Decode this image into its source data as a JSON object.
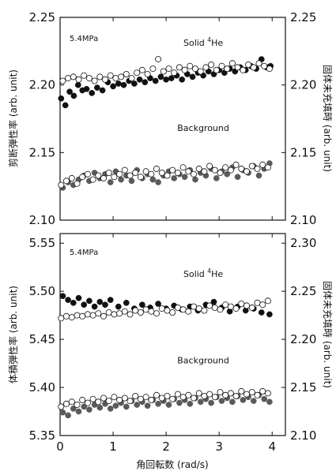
{
  "chart_data": [
    {
      "type": "scatter",
      "panel": "top",
      "pressure_label": "5.4MPa",
      "ylabel_left": "剪断弾性率 (arb. unit)",
      "ylabel_right": "固体未充填時 (arb. unit)",
      "xlim": [
        0,
        4.25
      ],
      "ylim_left": [
        2.1,
        2.25
      ],
      "ylim_right": [
        2.1,
        2.25
      ],
      "yticks_left": [
        "2.10",
        "2.15",
        "2.20",
        "2.25"
      ],
      "yticks_right": [
        "2.10",
        "2.15",
        "2.20",
        "2.25"
      ],
      "annotations": [
        {
          "id": "solid",
          "text": "Solid ",
          "sup": "4",
          "tail": "He",
          "x": 2.7,
          "y": 2.229
        },
        {
          "id": "background",
          "text": "Background",
          "x": 2.7,
          "y": 2.166
        }
      ],
      "series": [
        {
          "id": "solid-filled",
          "marker": "filled-dark",
          "color": "#111111",
          "x": [
            0.02,
            0.1,
            0.18,
            0.26,
            0.34,
            0.42,
            0.5,
            0.6,
            0.7,
            0.8,
            0.9,
            1.0,
            1.1,
            1.2,
            1.3,
            1.4,
            1.5,
            1.6,
            1.7,
            1.8,
            1.9,
            2.0,
            2.1,
            2.2,
            2.3,
            2.4,
            2.5,
            2.6,
            2.7,
            2.8,
            2.9,
            3.0,
            3.1,
            3.2,
            3.3,
            3.4,
            3.5,
            3.6,
            3.7,
            3.8,
            3.9,
            3.97
          ],
          "y": [
            2.19,
            2.185,
            2.195,
            2.192,
            2.2,
            2.196,
            2.197,
            2.194,
            2.198,
            2.196,
            2.202,
            2.199,
            2.201,
            2.2,
            2.203,
            2.201,
            2.204,
            2.202,
            2.205,
            2.203,
            2.206,
            2.204,
            2.205,
            2.207,
            2.204,
            2.208,
            2.206,
            2.209,
            2.207,
            2.21,
            2.208,
            2.211,
            2.209,
            2.212,
            2.21,
            2.213,
            2.211,
            2.214,
            2.212,
            2.219,
            2.213,
            2.214
          ]
        },
        {
          "id": "solid-open",
          "marker": "open",
          "color": "#111111",
          "x": [
            0.05,
            0.15,
            0.25,
            0.35,
            0.45,
            0.55,
            0.65,
            0.75,
            0.85,
            0.95,
            1.05,
            1.15,
            1.25,
            1.35,
            1.45,
            1.55,
            1.65,
            1.75,
            1.85,
            1.95,
            2.05,
            2.15,
            2.25,
            2.35,
            2.45,
            2.55,
            2.65,
            2.75,
            2.85,
            2.95,
            3.05,
            3.15,
            3.25,
            3.35,
            3.45,
            3.55,
            3.65,
            3.75,
            3.85,
            3.95
          ],
          "y": [
            2.203,
            2.205,
            2.206,
            2.204,
            2.207,
            2.205,
            2.203,
            2.206,
            2.204,
            2.207,
            2.205,
            2.206,
            2.208,
            2.205,
            2.209,
            2.211,
            2.208,
            2.212,
            2.219,
            2.21,
            2.212,
            2.209,
            2.213,
            2.211,
            2.214,
            2.212,
            2.21,
            2.213,
            2.215,
            2.211,
            2.214,
            2.212,
            2.216,
            2.213,
            2.211,
            2.215,
            2.213,
            2.216,
            2.214,
            2.212
          ]
        },
        {
          "id": "background-filled",
          "marker": "filled-gray",
          "color": "#5a5a5a",
          "x": [
            0.05,
            0.15,
            0.25,
            0.35,
            0.45,
            0.55,
            0.65,
            0.75,
            0.85,
            0.95,
            1.05,
            1.15,
            1.25,
            1.35,
            1.45,
            1.55,
            1.65,
            1.75,
            1.85,
            1.95,
            2.05,
            2.15,
            2.25,
            2.35,
            2.45,
            2.55,
            2.65,
            2.75,
            2.85,
            2.95,
            3.05,
            3.15,
            3.25,
            3.35,
            3.45,
            3.55,
            3.65,
            3.75,
            3.85,
            3.95
          ],
          "y": [
            2.124,
            2.128,
            2.126,
            2.13,
            2.133,
            2.129,
            2.135,
            2.131,
            2.134,
            2.128,
            2.136,
            2.13,
            2.133,
            2.129,
            2.137,
            2.131,
            2.134,
            2.13,
            2.128,
            2.133,
            2.136,
            2.131,
            2.134,
            2.132,
            2.137,
            2.13,
            2.135,
            2.133,
            2.138,
            2.131,
            2.136,
            2.134,
            2.139,
            2.132,
            2.137,
            2.135,
            2.14,
            2.133,
            2.138,
            2.142
          ]
        },
        {
          "id": "background-open",
          "marker": "open",
          "color": "#111111",
          "x": [
            0.02,
            0.12,
            0.22,
            0.32,
            0.42,
            0.52,
            0.62,
            0.72,
            0.82,
            0.92,
            1.02,
            1.12,
            1.22,
            1.32,
            1.42,
            1.52,
            1.62,
            1.72,
            1.82,
            1.92,
            2.02,
            2.12,
            2.22,
            2.32,
            2.42,
            2.52,
            2.62,
            2.72,
            2.82,
            2.92,
            3.02,
            3.12,
            3.22,
            3.32,
            3.42,
            3.52,
            3.62,
            3.72,
            3.82,
            3.92
          ],
          "y": [
            2.126,
            2.129,
            2.131,
            2.127,
            2.132,
            2.134,
            2.13,
            2.133,
            2.131,
            2.135,
            2.132,
            2.134,
            2.137,
            2.133,
            2.135,
            2.132,
            2.136,
            2.134,
            2.138,
            2.135,
            2.133,
            2.137,
            2.135,
            2.139,
            2.136,
            2.134,
            2.138,
            2.136,
            2.14,
            2.137,
            2.135,
            2.139,
            2.137,
            2.141,
            2.138,
            2.136,
            2.14,
            2.138,
            2.141,
            2.139
          ]
        }
      ]
    },
    {
      "type": "scatter",
      "panel": "bottom",
      "pressure_label": "5.4MPa",
      "xlabel": "角回転数 (rad/s)",
      "ylabel_left": "体積弾性率 (arb. unit)",
      "ylabel_right": "固体未充填時 (arb. unit)",
      "xlim": [
        0,
        4.25
      ],
      "xticks": [
        "0",
        "1",
        "2",
        "3",
        "4"
      ],
      "ylim_left": [
        5.35,
        5.56
      ],
      "ylim_right": [
        2.1,
        2.31
      ],
      "yticks_left": [
        "5.35",
        "5.40",
        "5.45",
        "5.50",
        "5.55"
      ],
      "yticks_right": [
        "2.10",
        "2.15",
        "2.20",
        "2.25",
        "2.30"
      ],
      "annotations": [
        {
          "id": "solid",
          "text": "Solid ",
          "sup": "4",
          "tail": "He",
          "x": 2.7,
          "y": 5.515
        },
        {
          "id": "background",
          "text": "Background",
          "x": 2.7,
          "y": 5.425
        }
      ],
      "series": [
        {
          "id": "solid-filled",
          "marker": "filled-dark",
          "color": "#111111",
          "x": [
            0.05,
            0.15,
            0.25,
            0.35,
            0.45,
            0.55,
            0.65,
            0.75,
            0.85,
            0.95,
            1.1,
            1.25,
            1.4,
            1.55,
            1.7,
            1.85,
            2.0,
            2.15,
            2.3,
            2.45,
            2.6,
            2.75,
            2.9,
            3.05,
            3.2,
            3.35,
            3.5,
            3.65,
            3.8,
            3.95
          ],
          "y": [
            5.495,
            5.491,
            5.488,
            5.493,
            5.486,
            5.49,
            5.484,
            5.489,
            5.486,
            5.491,
            5.484,
            5.488,
            5.482,
            5.486,
            5.483,
            5.487,
            5.482,
            5.485,
            5.481,
            5.484,
            5.48,
            5.486,
            5.489,
            5.483,
            5.479,
            5.484,
            5.48,
            5.482,
            5.478,
            5.476
          ]
        },
        {
          "id": "solid-open",
          "marker": "open",
          "color": "#111111",
          "x": [
            0.02,
            0.12,
            0.22,
            0.32,
            0.42,
            0.52,
            0.62,
            0.72,
            0.82,
            0.92,
            1.02,
            1.12,
            1.22,
            1.32,
            1.42,
            1.52,
            1.62,
            1.72,
            1.82,
            1.92,
            2.02,
            2.12,
            2.22,
            2.32,
            2.42,
            2.52,
            2.62,
            2.72,
            2.82,
            2.92,
            3.02,
            3.12,
            3.22,
            3.32,
            3.42,
            3.52,
            3.62,
            3.72,
            3.82,
            3.92
          ],
          "y": [
            5.472,
            5.474,
            5.473,
            5.475,
            5.474,
            5.476,
            5.475,
            5.477,
            5.474,
            5.478,
            5.476,
            5.477,
            5.479,
            5.476,
            5.48,
            5.478,
            5.481,
            5.479,
            5.477,
            5.482,
            5.48,
            5.478,
            5.483,
            5.481,
            5.479,
            5.484,
            5.482,
            5.48,
            5.485,
            5.483,
            5.481,
            5.486,
            5.484,
            5.482,
            5.487,
            5.485,
            5.483,
            5.488,
            5.486,
            5.49
          ]
        },
        {
          "id": "background-filled",
          "marker": "filled-gray",
          "color": "#5a5a5a",
          "x": [
            0.05,
            0.15,
            0.25,
            0.35,
            0.45,
            0.55,
            0.65,
            0.75,
            0.85,
            0.95,
            1.05,
            1.15,
            1.25,
            1.35,
            1.45,
            1.55,
            1.65,
            1.75,
            1.85,
            1.95,
            2.05,
            2.15,
            2.25,
            2.35,
            2.45,
            2.55,
            2.65,
            2.75,
            2.85,
            2.95,
            3.05,
            3.15,
            3.25,
            3.35,
            3.45,
            3.55,
            3.65,
            3.75,
            3.85,
            3.95
          ],
          "y": [
            5.374,
            5.371,
            5.378,
            5.375,
            5.38,
            5.377,
            5.382,
            5.379,
            5.383,
            5.378,
            5.381,
            5.384,
            5.38,
            5.386,
            5.382,
            5.385,
            5.381,
            5.387,
            5.383,
            5.386,
            5.382,
            5.388,
            5.384,
            5.387,
            5.383,
            5.389,
            5.385,
            5.388,
            5.384,
            5.39,
            5.386,
            5.389,
            5.385,
            5.391,
            5.387,
            5.39,
            5.386,
            5.392,
            5.388,
            5.385
          ]
        },
        {
          "id": "background-open",
          "marker": "open",
          "color": "#111111",
          "x": [
            0.02,
            0.12,
            0.22,
            0.32,
            0.42,
            0.52,
            0.62,
            0.72,
            0.82,
            0.92,
            1.02,
            1.12,
            1.22,
            1.32,
            1.42,
            1.52,
            1.62,
            1.72,
            1.82,
            1.92,
            2.02,
            2.12,
            2.22,
            2.32,
            2.42,
            2.52,
            2.62,
            2.72,
            2.82,
            2.92,
            3.02,
            3.12,
            3.22,
            3.32,
            3.42,
            3.52,
            3.62,
            3.72,
            3.82,
            3.92
          ],
          "y": [
            5.38,
            5.383,
            5.385,
            5.382,
            5.387,
            5.384,
            5.388,
            5.385,
            5.389,
            5.386,
            5.39,
            5.387,
            5.389,
            5.386,
            5.391,
            5.388,
            5.39,
            5.387,
            5.392,
            5.389,
            5.391,
            5.388,
            5.393,
            5.39,
            5.392,
            5.389,
            5.394,
            5.391,
            5.393,
            5.39,
            5.395,
            5.392,
            5.394,
            5.391,
            5.396,
            5.393,
            5.395,
            5.392,
            5.396,
            5.394
          ]
        }
      ]
    }
  ]
}
